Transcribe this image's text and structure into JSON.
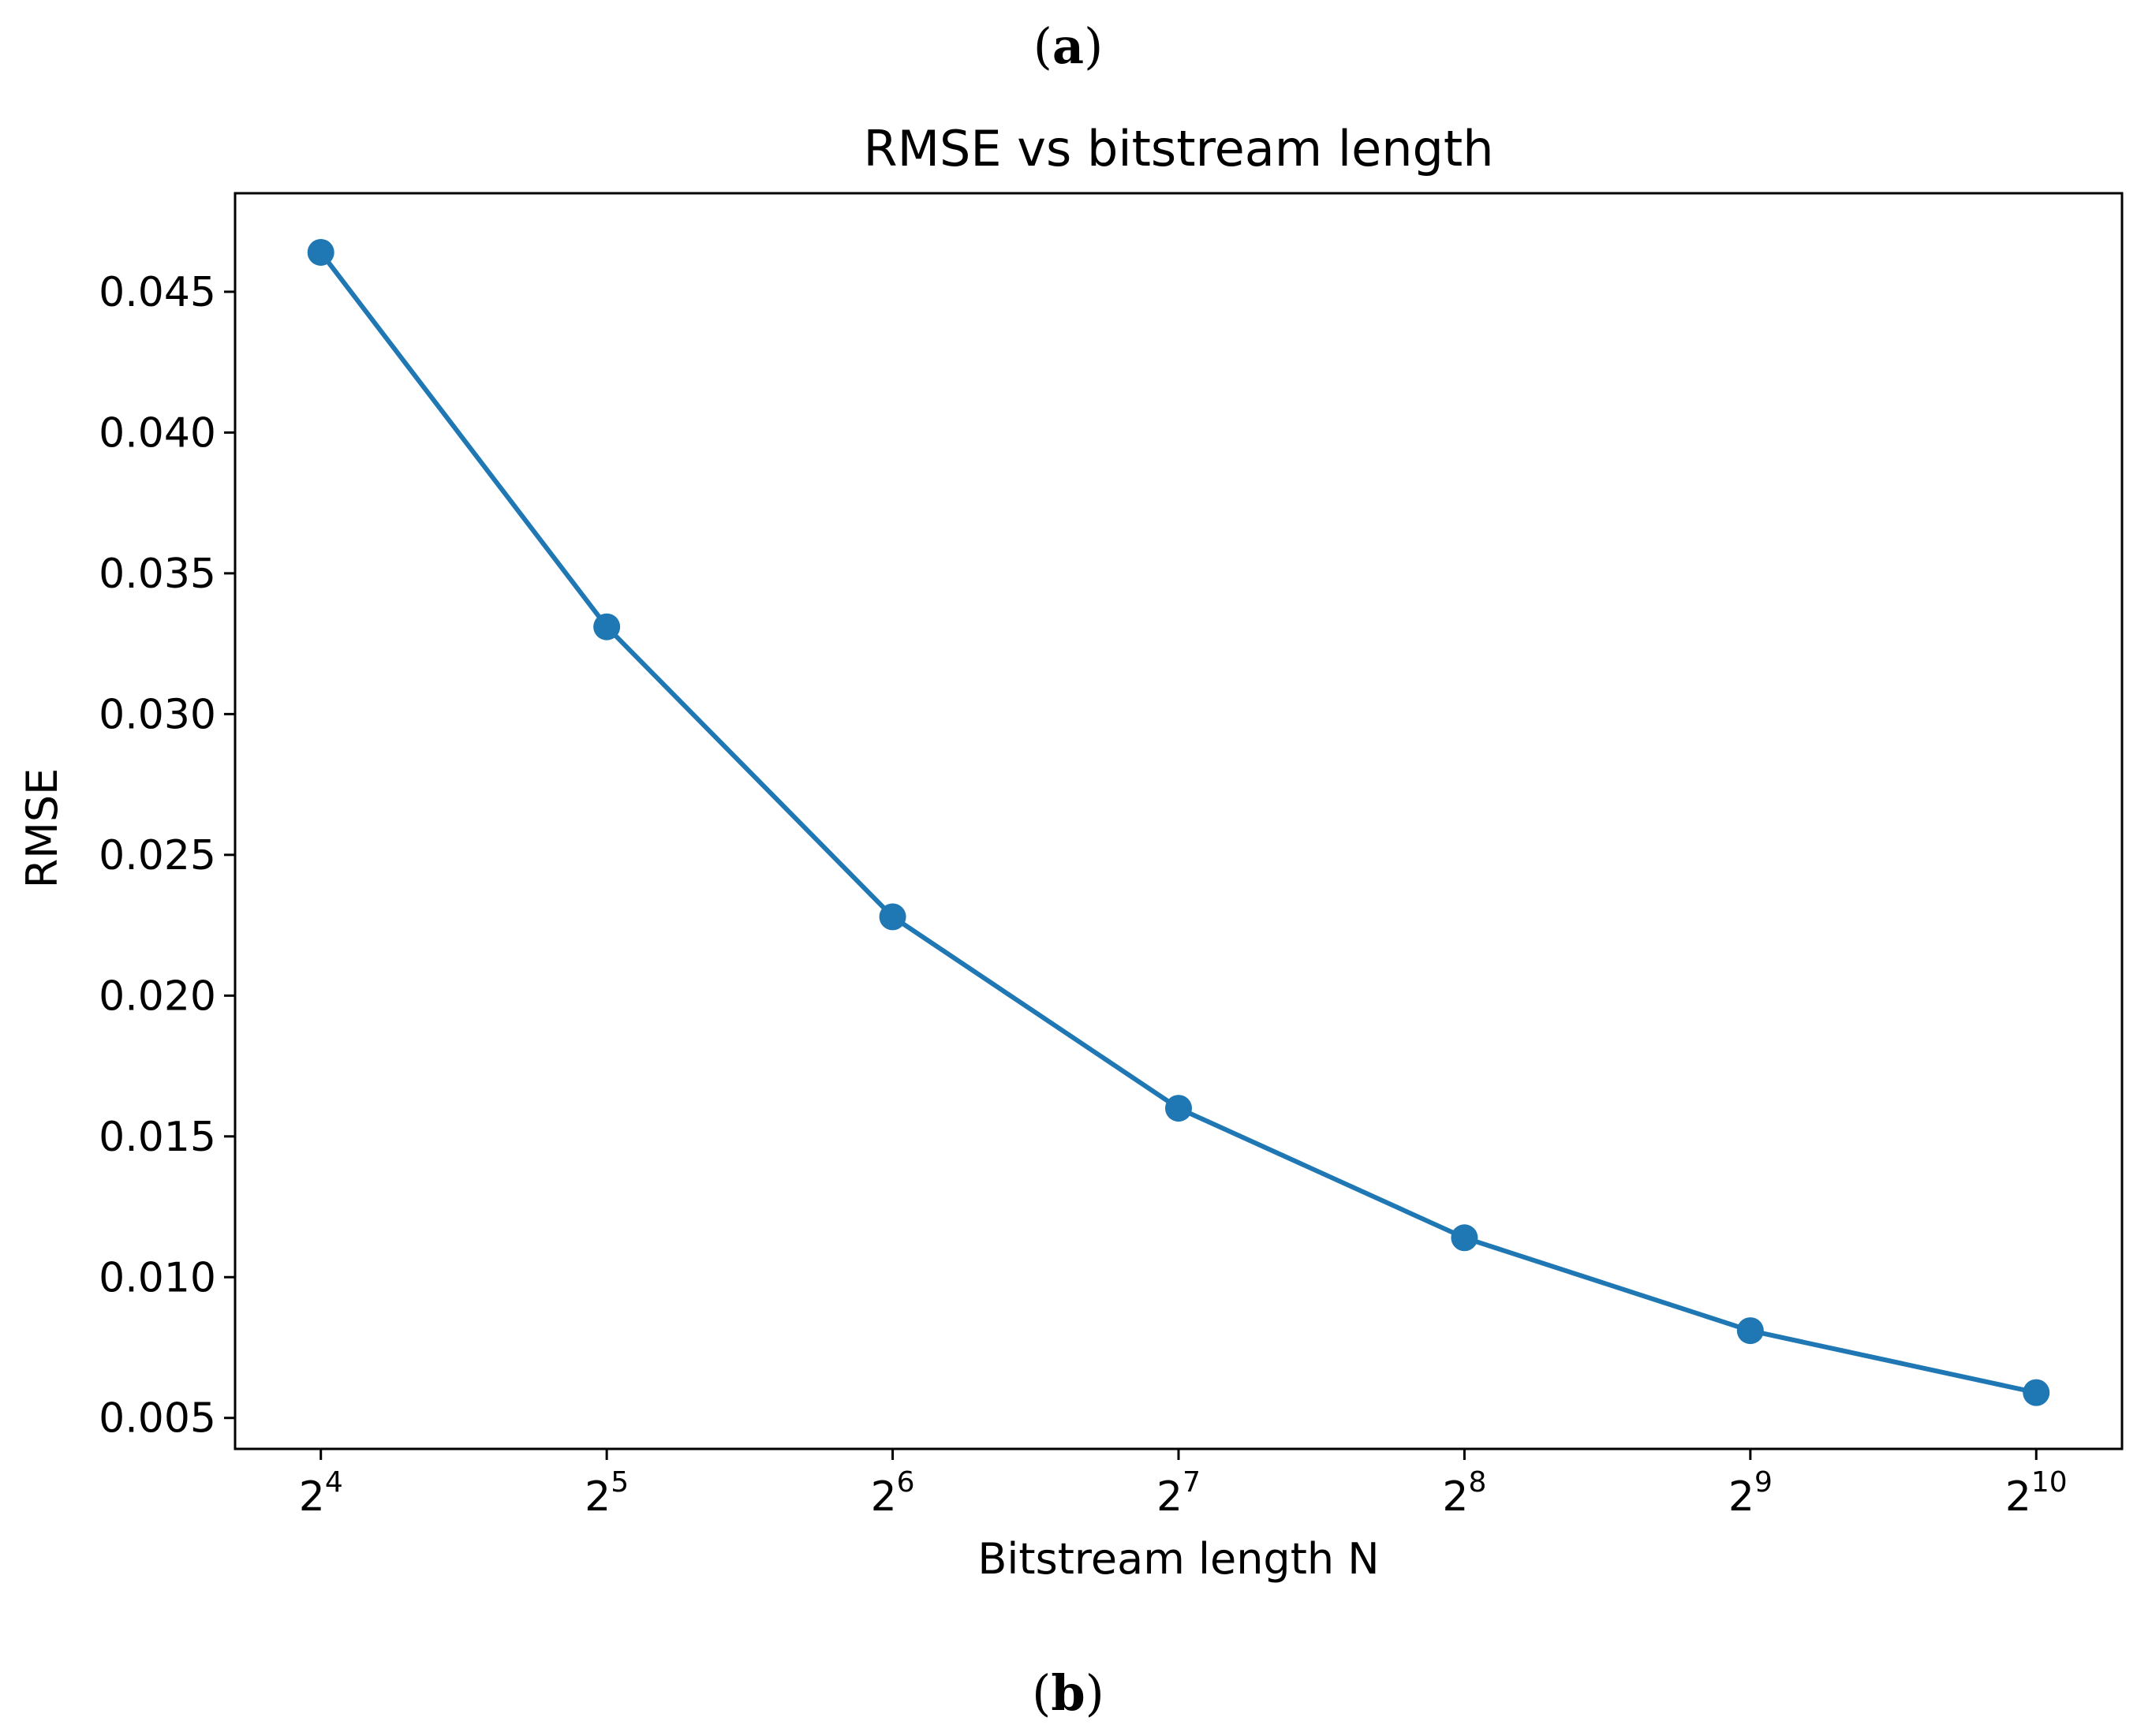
{
  "figure": {
    "label_top": "a",
    "label_bottom": "b"
  },
  "colors": {
    "series": "#1f77b4",
    "axes": "#000000"
  },
  "chart_data": {
    "type": "line",
    "title": "RMSE vs bitstream length",
    "xlabel": "Bitstream length N",
    "ylabel": "RMSE",
    "x_scale": "log2",
    "x": [
      16,
      32,
      64,
      128,
      256,
      512,
      1024
    ],
    "x_tick_labels": [
      {
        "base": "2",
        "exp": "4"
      },
      {
        "base": "2",
        "exp": "5"
      },
      {
        "base": "2",
        "exp": "6"
      },
      {
        "base": "2",
        "exp": "7"
      },
      {
        "base": "2",
        "exp": "8"
      },
      {
        "base": "2",
        "exp": "9"
      },
      {
        "base": "2",
        "exp": "10"
      }
    ],
    "y_ticks": [
      "0.005",
      "0.010",
      "0.015",
      "0.020",
      "0.025",
      "0.030",
      "0.035",
      "0.040",
      "0.045"
    ],
    "ylim": [
      0.0039,
      0.0485
    ],
    "xlim_log2": [
      3.7,
      10.3
    ],
    "series": [
      {
        "values": [
          0.0464,
          0.0331,
          0.0228,
          0.016,
          0.0114,
          0.0081,
          0.0059
        ],
        "marker": "circle"
      }
    ],
    "grid": false,
    "legend": "none"
  }
}
